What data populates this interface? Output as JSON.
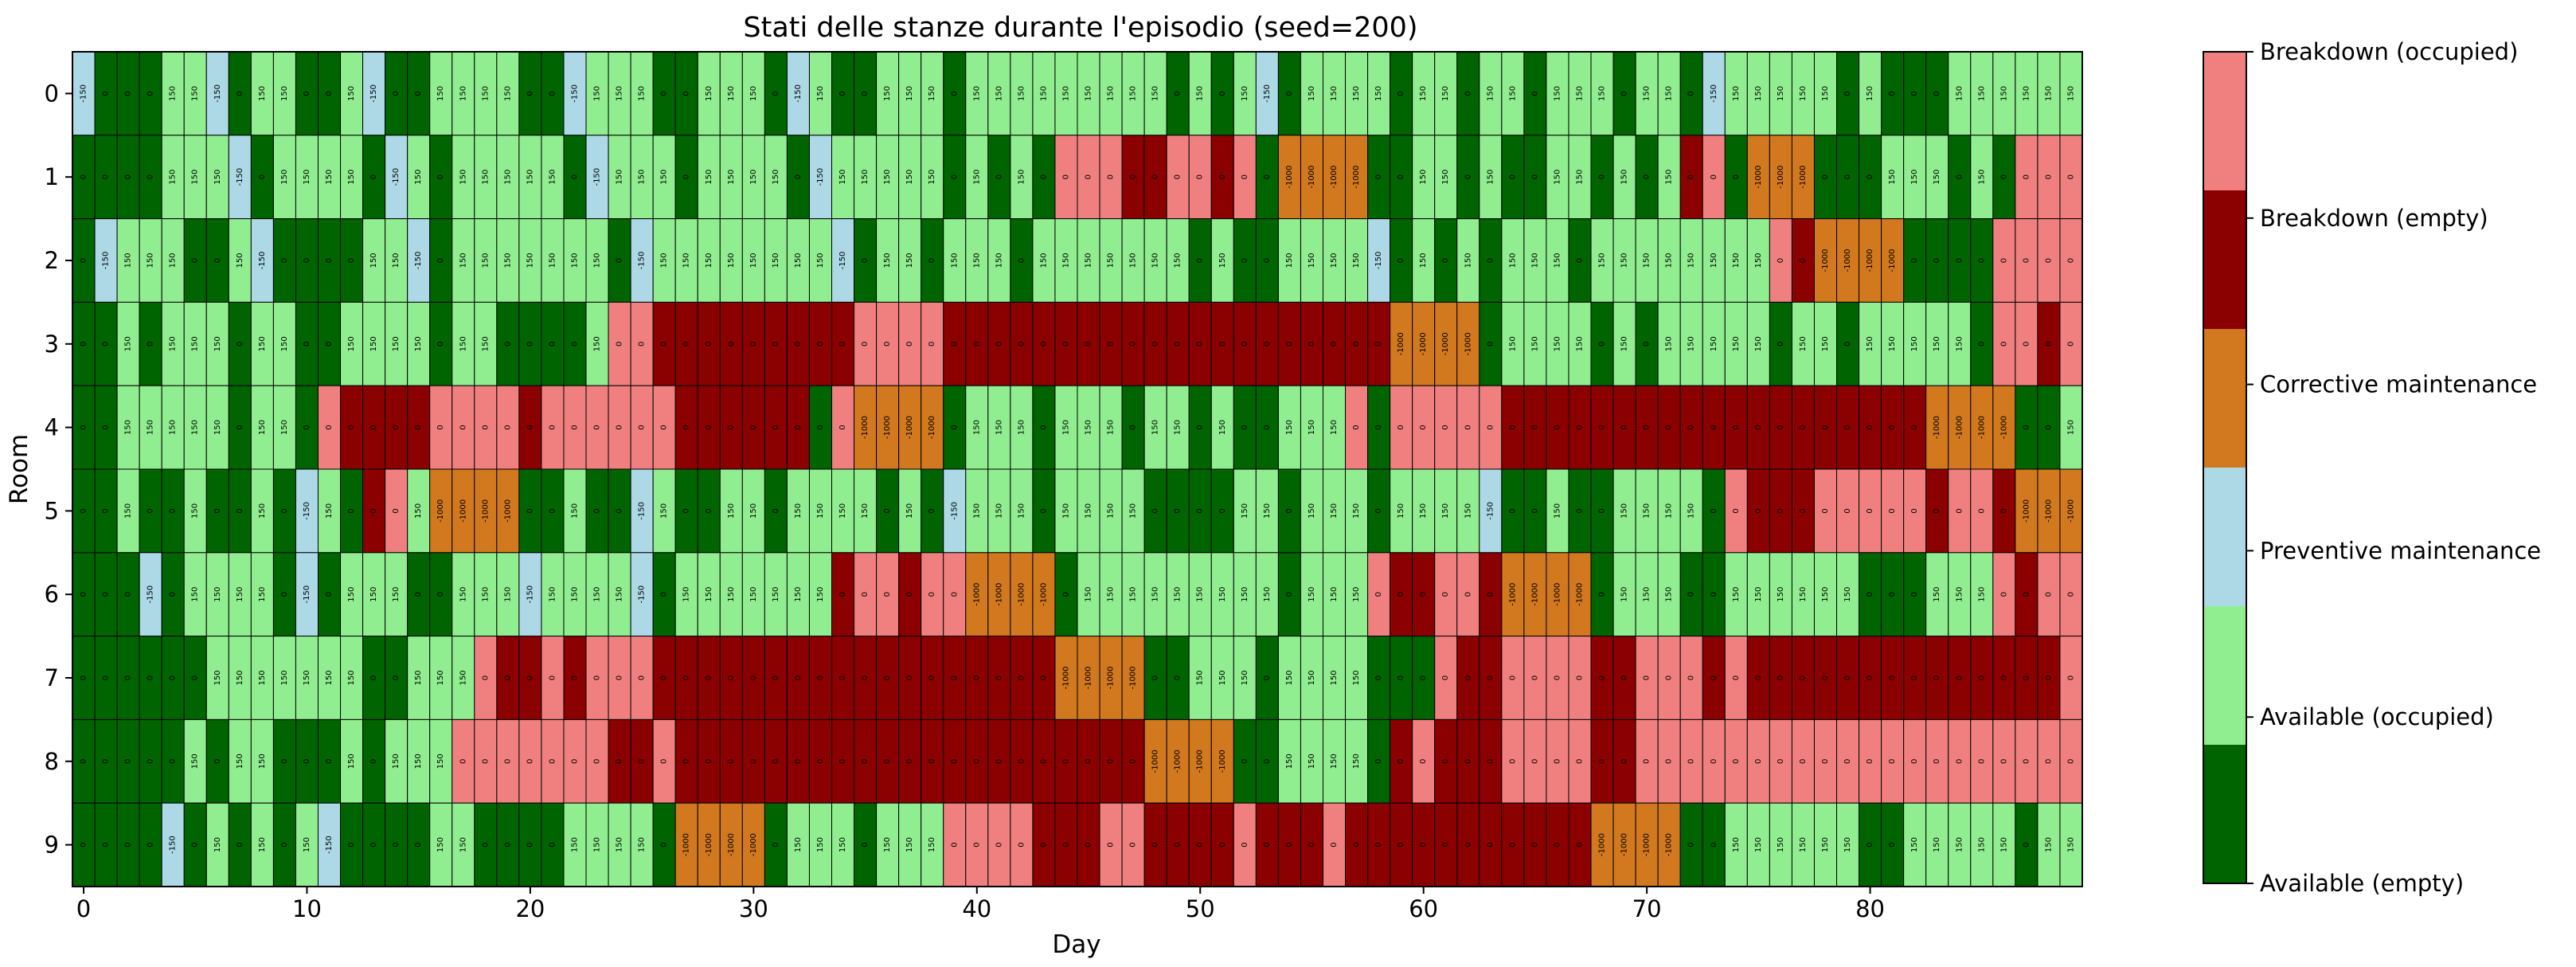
{
  "chart_data": {
    "type": "heatmap",
    "title": "Stati delle stanze durante l'episodio (seed=200)",
    "xlabel": "Day",
    "ylabel": "Room",
    "x_ticks": [
      0,
      10,
      20,
      30,
      40,
      50,
      60,
      70,
      80
    ],
    "y_ticks": [
      0,
      1,
      2,
      3,
      4,
      5,
      6,
      7,
      8,
      9
    ],
    "n_days": 90,
    "n_rooms": 10,
    "legend": {
      "placement": "right",
      "states": [
        {
          "code": "AE",
          "label": "Available (empty)",
          "color": "#006400",
          "reward": "0"
        },
        {
          "code": "AO",
          "label": "Available (occupied)",
          "color": "#90EE90",
          "reward": "150"
        },
        {
          "code": "PM",
          "label": "Preventive maintenance",
          "color": "#ADD8E6",
          "reward": "-150"
        },
        {
          "code": "CM",
          "label": "Corrective maintenance",
          "color": "#D2781E",
          "reward": "-1000"
        },
        {
          "code": "BE",
          "label": "Breakdown (empty)",
          "color": "#8B0000",
          "reward": "0"
        },
        {
          "code": "BO",
          "label": "Breakdown (occupied)",
          "color": "#F08080",
          "reward": "0"
        }
      ]
    },
    "rooms": [
      [
        "PM",
        "AE",
        "AE",
        "AE",
        "AO",
        "AO",
        "PM",
        "AE",
        "AO",
        "AO",
        "AE",
        "AE",
        "AO",
        "PM",
        "AE",
        "AE",
        "AO",
        "AO",
        "AO",
        "AO",
        "AE",
        "AE",
        "PM",
        "AO",
        "AO",
        "AO",
        "AE",
        "AE",
        "AO",
        "AO",
        "AO",
        "AE",
        "PM",
        "AO",
        "AE",
        "AE",
        "AO",
        "AO",
        "AO",
        "AE",
        "AO",
        "AO",
        "AO",
        "AO",
        "AO",
        "AO",
        "AO",
        "AO",
        "AO",
        "AE",
        "AO",
        "AE",
        "AO",
        "PM",
        "AE",
        "AO",
        "AO",
        "AO",
        "AO",
        "AE",
        "AO",
        "AO",
        "AE",
        "AO",
        "AO",
        "AE",
        "AO",
        "AO",
        "AO",
        "AE",
        "AO",
        "AO",
        "AE",
        "PM",
        "AO",
        "AO",
        "AO",
        "AO",
        "AO",
        "AE",
        "AO",
        "AE",
        "AE",
        "AE",
        "AO",
        "AO",
        "AO",
        "AO",
        "AO",
        "AO"
      ],
      [
        "AE",
        "AE",
        "AE",
        "AE",
        "AO",
        "AO",
        "AO",
        "PM",
        "AE",
        "AO",
        "AO",
        "AO",
        "AO",
        "AE",
        "PM",
        "AO",
        "AE",
        "AO",
        "AO",
        "AO",
        "AO",
        "AO",
        "AE",
        "PM",
        "AO",
        "AO",
        "AO",
        "AE",
        "AO",
        "AO",
        "AO",
        "AO",
        "AE",
        "PM",
        "AO",
        "AO",
        "AO",
        "AO",
        "AO",
        "AE",
        "AO",
        "AE",
        "AO",
        "AE",
        "BO",
        "BO",
        "BO",
        "BE",
        "BE",
        "BO",
        "BO",
        "BE",
        "BO",
        "AE",
        "CM",
        "CM",
        "CM",
        "CM",
        "AE",
        "AE",
        "AO",
        "AO",
        "AE",
        "AO",
        "AE",
        "AE",
        "AO",
        "AO",
        "AE",
        "AO",
        "AE",
        "AO",
        "BE",
        "BO",
        "AE",
        "CM",
        "CM",
        "CM",
        "AE",
        "AE",
        "AE",
        "AO",
        "AO",
        "AO",
        "AE",
        "AO",
        "AE",
        "BO",
        "BO",
        "BO"
      ],
      [
        "AE",
        "PM",
        "AO",
        "AO",
        "AO",
        "AE",
        "AE",
        "AO",
        "PM",
        "AE",
        "AE",
        "AE",
        "AE",
        "AO",
        "AO",
        "PM",
        "AE",
        "AO",
        "AO",
        "AO",
        "AO",
        "AO",
        "AO",
        "AO",
        "AE",
        "PM",
        "AO",
        "AO",
        "AO",
        "AO",
        "AO",
        "AO",
        "AO",
        "AO",
        "PM",
        "AE",
        "AO",
        "AO",
        "AE",
        "AO",
        "AO",
        "AO",
        "AE",
        "AO",
        "AO",
        "AO",
        "AO",
        "AO",
        "AO",
        "AO",
        "AE",
        "AO",
        "AE",
        "AE",
        "AO",
        "AO",
        "AO",
        "AO",
        "PM",
        "AE",
        "AO",
        "AE",
        "AO",
        "AE",
        "AO",
        "AO",
        "AO",
        "AE",
        "AO",
        "AO",
        "AO",
        "AO",
        "AO",
        "AO",
        "AO",
        "AO",
        "BO",
        "BE",
        "CM",
        "CM",
        "CM",
        "CM",
        "AE",
        "AE",
        "AE",
        "AE",
        "BO",
        "BO",
        "BO",
        "BO"
      ],
      [
        "AE",
        "AE",
        "AO",
        "AE",
        "AO",
        "AO",
        "AO",
        "AE",
        "AO",
        "AO",
        "AE",
        "AE",
        "AO",
        "AO",
        "AO",
        "AO",
        "AE",
        "AO",
        "AO",
        "AE",
        "AE",
        "AE",
        "AE",
        "AO",
        "BO",
        "BO",
        "BE",
        "BE",
        "BE",
        "BE",
        "BE",
        "BE",
        "BE",
        "BE",
        "BE",
        "BO",
        "BO",
        "BO",
        "BO",
        "BE",
        "BE",
        "BE",
        "BE",
        "BE",
        "BE",
        "BE",
        "BE",
        "BE",
        "BE",
        "BE",
        "BE",
        "BE",
        "BE",
        "BE",
        "BE",
        "BE",
        "BE",
        "BE",
        "BE",
        "CM",
        "CM",
        "CM",
        "CM",
        "AE",
        "AO",
        "AO",
        "AO",
        "AO",
        "AE",
        "AO",
        "AE",
        "AO",
        "AO",
        "AO",
        "AO",
        "AO",
        "AE",
        "AO",
        "AO",
        "AE",
        "AO",
        "AO",
        "AO",
        "AO",
        "AO",
        "AE",
        "BO",
        "BO",
        "BE",
        "BO"
      ],
      [
        "AE",
        "AE",
        "AO",
        "AO",
        "AO",
        "AO",
        "AO",
        "AE",
        "AO",
        "AO",
        "AE",
        "BO",
        "BE",
        "BE",
        "BE",
        "BE",
        "BO",
        "BO",
        "BO",
        "BO",
        "BE",
        "BO",
        "BO",
        "BO",
        "BO",
        "BO",
        "BO",
        "BE",
        "BE",
        "BE",
        "BE",
        "BE",
        "BE",
        "AE",
        "BO",
        "CM",
        "CM",
        "CM",
        "CM",
        "AE",
        "AO",
        "AO",
        "AO",
        "AE",
        "AO",
        "AO",
        "AO",
        "AE",
        "AO",
        "AO",
        "AE",
        "AO",
        "AE",
        "AE",
        "AO",
        "AO",
        "AO",
        "BO",
        "AE",
        "BO",
        "BO",
        "BO",
        "BO",
        "BO",
        "BE",
        "BE",
        "BE",
        "BE",
        "BE",
        "BE",
        "BE",
        "BE",
        "BE",
        "BE",
        "BE",
        "BE",
        "BE",
        "BE",
        "BE",
        "BE",
        "BE",
        "BE",
        "BE",
        "CM",
        "CM",
        "CM",
        "CM",
        "AE",
        "AE",
        "AO"
      ],
      [
        "AE",
        "AE",
        "AO",
        "AE",
        "AE",
        "AO",
        "AE",
        "AE",
        "AO",
        "AE",
        "PM",
        "AO",
        "AE",
        "BE",
        "BO",
        "AO",
        "CM",
        "CM",
        "CM",
        "CM",
        "AE",
        "AE",
        "AO",
        "AE",
        "AE",
        "PM",
        "AO",
        "AE",
        "AE",
        "AO",
        "AO",
        "AE",
        "AO",
        "AO",
        "AO",
        "AO",
        "AE",
        "AO",
        "AE",
        "PM",
        "AO",
        "AO",
        "AO",
        "AE",
        "AO",
        "AO",
        "AO",
        "AO",
        "AE",
        "AE",
        "AE",
        "AE",
        "AO",
        "AO",
        "AE",
        "AO",
        "AO",
        "AO",
        "AE",
        "AO",
        "AO",
        "AO",
        "AO",
        "PM",
        "AE",
        "AE",
        "AO",
        "AE",
        "AE",
        "AO",
        "AO",
        "AO",
        "AO",
        "AE",
        "BO",
        "BE",
        "BE",
        "BE",
        "BO",
        "BO",
        "BO",
        "BO",
        "BO",
        "BE",
        "BO",
        "BO",
        "BE",
        "CM",
        "CM",
        "CM"
      ],
      [
        "AE",
        "AE",
        "AE",
        "PM",
        "AE",
        "AO",
        "AO",
        "AO",
        "AO",
        "AE",
        "PM",
        "AE",
        "AO",
        "AO",
        "AO",
        "AE",
        "AE",
        "AO",
        "AO",
        "AO",
        "PM",
        "AO",
        "AO",
        "AO",
        "AO",
        "PM",
        "AE",
        "AO",
        "AO",
        "AO",
        "AO",
        "AO",
        "AO",
        "AO",
        "BE",
        "BO",
        "BO",
        "BE",
        "BO",
        "BO",
        "CM",
        "CM",
        "CM",
        "CM",
        "AE",
        "AO",
        "AO",
        "AO",
        "AO",
        "AO",
        "AO",
        "AO",
        "AO",
        "AO",
        "AE",
        "AO",
        "AO",
        "AO",
        "BO",
        "BE",
        "BE",
        "BO",
        "BO",
        "BE",
        "CM",
        "CM",
        "CM",
        "CM",
        "AE",
        "AO",
        "AO",
        "AO",
        "AE",
        "AE",
        "AO",
        "AO",
        "AO",
        "AO",
        "AO",
        "AO",
        "AE",
        "AE",
        "AE",
        "AO",
        "AO",
        "AO",
        "BO",
        "BE",
        "BO",
        "BO"
      ],
      [
        "AE",
        "AE",
        "AE",
        "AE",
        "AE",
        "AE",
        "AO",
        "AO",
        "AO",
        "AO",
        "AO",
        "AO",
        "AO",
        "AE",
        "AE",
        "AO",
        "AO",
        "AO",
        "BO",
        "BE",
        "BE",
        "BO",
        "BE",
        "BO",
        "BO",
        "BO",
        "BE",
        "BE",
        "BE",
        "BE",
        "BE",
        "BE",
        "BE",
        "BE",
        "BE",
        "BE",
        "BE",
        "BE",
        "BE",
        "BE",
        "BE",
        "BE",
        "BE",
        "BE",
        "CM",
        "CM",
        "CM",
        "CM",
        "AE",
        "AE",
        "AO",
        "AO",
        "AO",
        "AE",
        "AO",
        "AO",
        "AO",
        "AO",
        "AE",
        "AE",
        "AE",
        "BO",
        "BE",
        "BE",
        "BO",
        "BO",
        "BO",
        "BO",
        "BE",
        "BE",
        "BO",
        "BO",
        "BO",
        "BE",
        "BO",
        "BE",
        "BE",
        "BE",
        "BE",
        "BE",
        "BE",
        "BE",
        "BE",
        "BE",
        "BE",
        "BE",
        "BE",
        "BE",
        "BE",
        "BO"
      ],
      [
        "AE",
        "AE",
        "AE",
        "AE",
        "AE",
        "AO",
        "AE",
        "AO",
        "AO",
        "AE",
        "AE",
        "AE",
        "AO",
        "AE",
        "AO",
        "AO",
        "AO",
        "BO",
        "BO",
        "BO",
        "BO",
        "BO",
        "BO",
        "BO",
        "BE",
        "BE",
        "BO",
        "BE",
        "BE",
        "BE",
        "BE",
        "BE",
        "BE",
        "BE",
        "BE",
        "BE",
        "BE",
        "BE",
        "BE",
        "BE",
        "BE",
        "BE",
        "BE",
        "BE",
        "BE",
        "BE",
        "BE",
        "BE",
        "CM",
        "CM",
        "CM",
        "CM",
        "AE",
        "AE",
        "AO",
        "AO",
        "AO",
        "AO",
        "AE",
        "BE",
        "BO",
        "BE",
        "BE",
        "BE",
        "BO",
        "BO",
        "BO",
        "BO",
        "BE",
        "BE",
        "BO",
        "BO",
        "BO",
        "BO",
        "BO",
        "BO",
        "BO",
        "BO",
        "BO",
        "BO",
        "BO",
        "BO",
        "BO",
        "BO",
        "BO",
        "BO",
        "BO",
        "BO",
        "BO",
        "BO"
      ],
      [
        "AE",
        "AE",
        "AE",
        "AE",
        "PM",
        "AE",
        "AO",
        "AE",
        "AO",
        "AE",
        "AO",
        "PM",
        "AE",
        "AE",
        "AE",
        "AE",
        "AO",
        "AO",
        "AE",
        "AE",
        "AE",
        "AE",
        "AO",
        "AO",
        "AO",
        "AO",
        "AE",
        "CM",
        "CM",
        "CM",
        "CM",
        "AE",
        "AO",
        "AO",
        "AO",
        "AE",
        "AO",
        "AO",
        "AO",
        "BO",
        "BO",
        "BO",
        "BO",
        "BE",
        "BE",
        "BE",
        "BO",
        "BO",
        "BE",
        "BE",
        "BE",
        "BE",
        "BO",
        "BE",
        "BE",
        "BE",
        "BO",
        "BE",
        "BE",
        "BE",
        "BE",
        "BE",
        "BE",
        "BE",
        "BE",
        "BE",
        "BE",
        "BE",
        "CM",
        "CM",
        "CM",
        "CM",
        "AE",
        "AE",
        "AO",
        "AO",
        "AO",
        "AO",
        "AO",
        "AO",
        "AE",
        "AE",
        "AO",
        "AO",
        "AO",
        "AO",
        "AO",
        "AE",
        "AO",
        "AO"
      ]
    ]
  }
}
